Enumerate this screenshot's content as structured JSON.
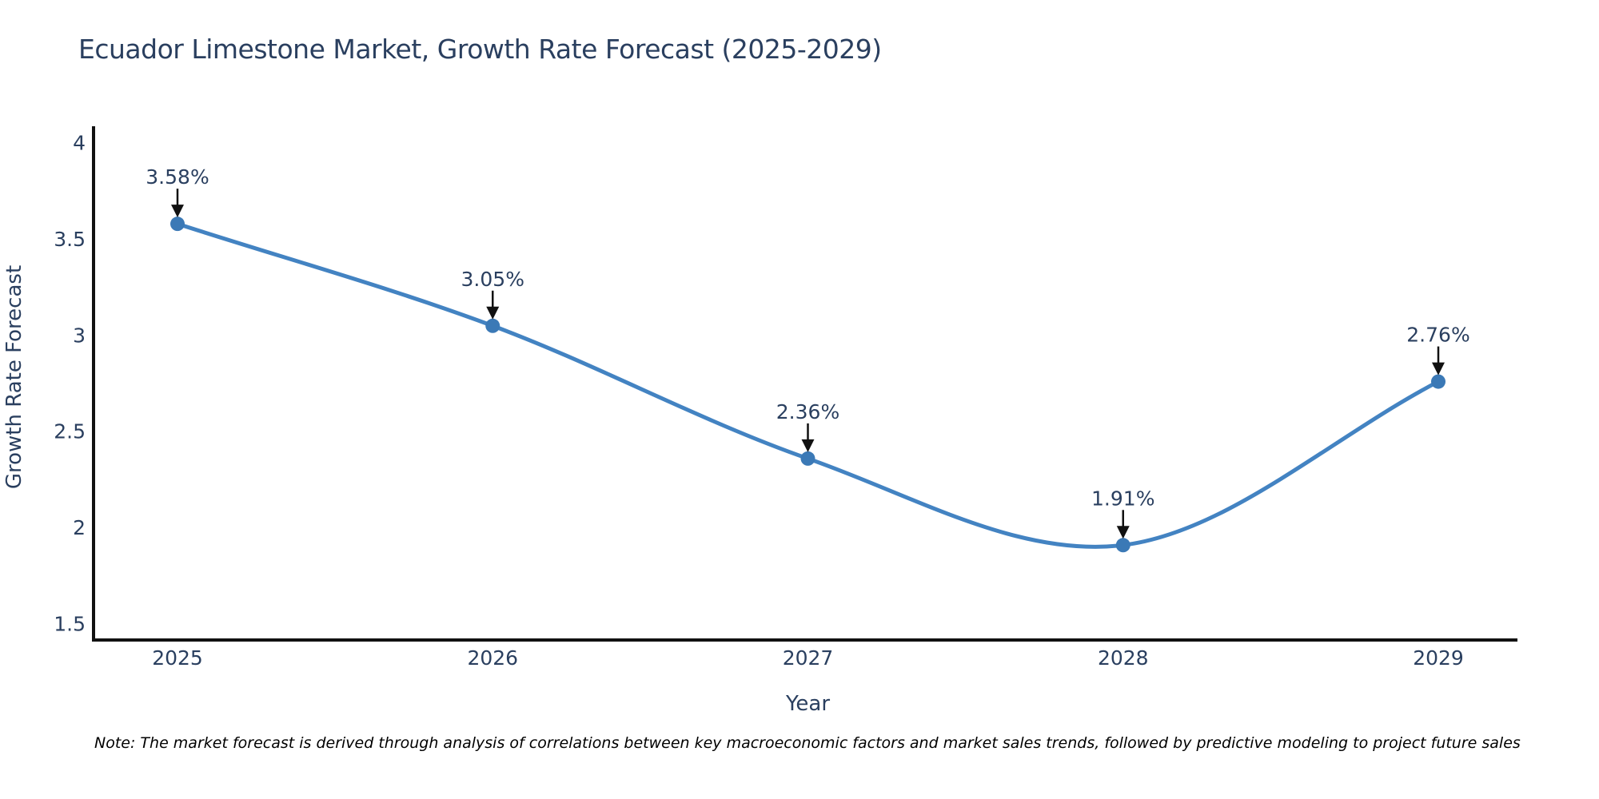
{
  "title": "Ecuador Limestone Market, Growth Rate Forecast (2025-2029)",
  "note": "Note: The market forecast is derived through analysis of correlations between key macroeconomic factors and market sales trends, followed by predictive modeling to project future sales",
  "chart_data": {
    "type": "line",
    "line_shape": "spline",
    "title": "Ecuador Limestone Market, Growth Rate Forecast (2025-2029)",
    "x": [
      2025,
      2026,
      2027,
      2028,
      2029
    ],
    "series": [
      {
        "name": "Growth Rate Forecast",
        "values": [
          3.58,
          3.05,
          2.36,
          1.91,
          2.76
        ],
        "point_labels": [
          "3.58%",
          "3.05%",
          "2.36%",
          "1.91%",
          "2.76%"
        ]
      }
    ],
    "xlabel": "Year",
    "ylabel": "Growth Rate Forecast",
    "xtick_labels": [
      "2025",
      "2026",
      "2027",
      "2028",
      "2029"
    ],
    "ytick_labels": [
      "1.5",
      "2",
      "2.5",
      "3",
      "3.5",
      "4"
    ],
    "ylim": [
      1.42,
      4.09
    ],
    "grid": false,
    "legend_position": "none",
    "annotations_style": "value labels with black down-arrows pointing at each marker",
    "colors": {
      "line": "#4383c2",
      "marker": "#3b79b6",
      "axis": "#111111",
      "chart_text": "#2a3f5f",
      "arrow": "#111111",
      "background": "#ffffff"
    }
  }
}
